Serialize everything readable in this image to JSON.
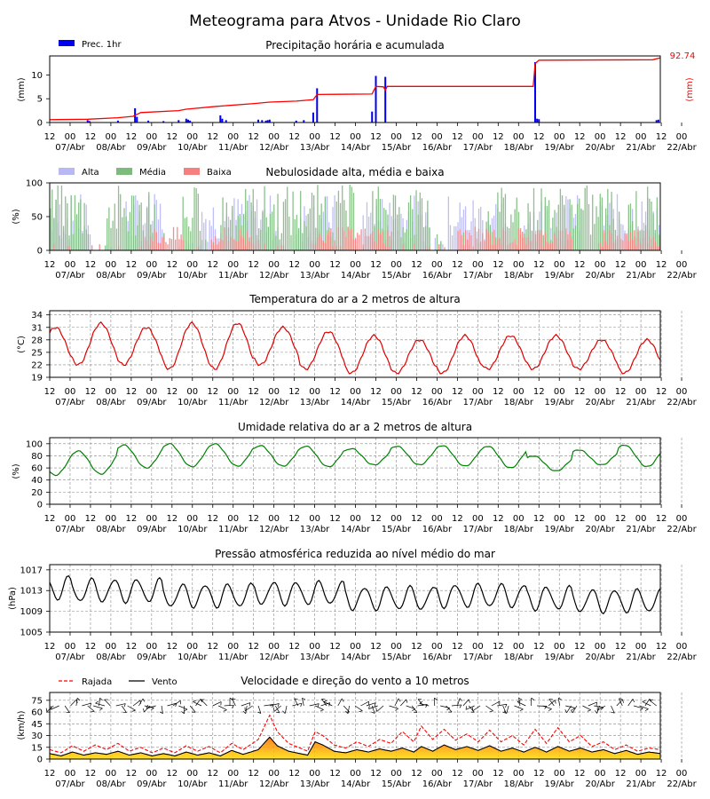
{
  "title": "Meteograma para Atvos - Unidade Rio Claro",
  "colors": {
    "precip_bar": "#0000ee",
    "precip_line": "#ff0000",
    "cloud_alta": "#b8b8f4",
    "cloud_media": "#7dbb7d",
    "cloud_baixa": "#f58080",
    "temperature": "#e00000",
    "humidity": "#008000",
    "pressure": "#000000",
    "gust": "#ff0000",
    "wind": "#000000",
    "wind_fill_low": "#ffdd00",
    "wind_fill_high": "#ff6a00"
  },
  "chart_data": [
    {
      "type": "bar",
      "title": "Precipitação horária e acumulada",
      "ylabel": "(mm)",
      "ylabel_right": "(mm)",
      "ylim": [
        0,
        14
      ],
      "yticks": [
        0,
        5,
        10
      ],
      "legend": {
        "position": "top-left",
        "entries": [
          "Prec. 1hr"
        ]
      },
      "accumulated_total_label": "92.74",
      "hourly_mm": [
        [
          20,
          0.5
        ],
        [
          21,
          0.3
        ],
        [
          36,
          0.4
        ],
        [
          45,
          3.0
        ],
        [
          46,
          1.2
        ],
        [
          52,
          0.4
        ],
        [
          60,
          0.3
        ],
        [
          68,
          0.5
        ],
        [
          72,
          0.8
        ],
        [
          73,
          0.6
        ],
        [
          74,
          0.4
        ],
        [
          90,
          1.5
        ],
        [
          91,
          0.8
        ],
        [
          93,
          0.5
        ],
        [
          110,
          0.6
        ],
        [
          112,
          0.5
        ],
        [
          114,
          0.4
        ],
        [
          115,
          0.5
        ],
        [
          116,
          0.6
        ],
        [
          130,
          0.4
        ],
        [
          134,
          0.5
        ],
        [
          139,
          2.1
        ],
        [
          141,
          7.2
        ],
        [
          170,
          2.3
        ],
        [
          172,
          9.8
        ],
        [
          177,
          9.6
        ],
        [
          256,
          12.7
        ],
        [
          257,
          0.8
        ],
        [
          258,
          0.7
        ],
        [
          320,
          0.5
        ],
        [
          321,
          0.6
        ]
      ],
      "accumulated_mm": [
        [
          0,
          0.6
        ],
        [
          20,
          0.7
        ],
        [
          36,
          1.0
        ],
        [
          44,
          1.3
        ],
        [
          48,
          2.1
        ],
        [
          68,
          2.5
        ],
        [
          72,
          2.8
        ],
        [
          88,
          3.4
        ],
        [
          108,
          4.0
        ],
        [
          116,
          4.3
        ],
        [
          130,
          4.5
        ],
        [
          139,
          4.8
        ],
        [
          141,
          5.9
        ],
        [
          170,
          6.0
        ],
        [
          172,
          7.6
        ],
        [
          176,
          7.5
        ],
        [
          177,
          6.8
        ],
        [
          178,
          7.6
        ],
        [
          255,
          7.6
        ],
        [
          256,
          12.4
        ],
        [
          258,
          13.1
        ],
        [
          318,
          13.2
        ],
        [
          322,
          13.6
        ]
      ],
      "x_tick_hours": [
        "12",
        "00",
        "12",
        "00",
        "12",
        "00",
        "12",
        "00",
        "12",
        "00",
        "12",
        "00",
        "12",
        "00",
        "12",
        "00",
        "12",
        "00",
        "12",
        "00",
        "12",
        "00",
        "12",
        "00",
        "12",
        "00",
        "12",
        "00",
        "12",
        "00",
        "12",
        "00"
      ],
      "x_tick_dates": [
        "07/Abr",
        "08/Abr",
        "09/Abr",
        "10/Abr",
        "11/Abr",
        "12/Abr",
        "13/Abr",
        "14/Abr",
        "15/Abr",
        "16/Abr",
        "17/Abr",
        "18/Abr",
        "19/Abr",
        "20/Abr",
        "21/Abr",
        "22/Abr"
      ],
      "grid": false
    },
    {
      "type": "bar",
      "title": "Nebulosidade alta, média e baixa",
      "ylabel": "(%)",
      "ylim": [
        0,
        100
      ],
      "yticks": [
        0,
        50,
        100
      ],
      "legend": {
        "position": "top-left",
        "entries": [
          "Alta",
          "Média",
          "Baixa"
        ]
      },
      "series": [
        {
          "name": "Alta",
          "level": 60,
          "active_windows": [
            [
              0,
              20
            ],
            [
              40,
              60
            ],
            [
              80,
              120
            ],
            [
              130,
              150
            ],
            [
              165,
              200
            ],
            [
              210,
              240
            ],
            [
              250,
              280
            ],
            [
              290,
              322
            ]
          ]
        },
        {
          "name": "Média",
          "level": 70,
          "active_windows": [
            [
              0,
              20
            ],
            [
              30,
              55
            ],
            [
              70,
              80
            ],
            [
              90,
              160
            ],
            [
              170,
              200
            ],
            [
              230,
              300
            ],
            [
              305,
              322
            ]
          ]
        },
        {
          "name": "Baixa",
          "level": 25,
          "active_windows": [
            [
              50,
              70
            ],
            [
              85,
              110
            ],
            [
              140,
              180
            ],
            [
              215,
              275
            ],
            [
              290,
              320
            ]
          ]
        }
      ],
      "grid": false
    },
    {
      "type": "line",
      "title": "Temperatura do ar a 2 metros de altura",
      "ylabel": "(°C)",
      "ylim": [
        19,
        35
      ],
      "yticks": [
        19,
        22,
        25,
        28,
        31,
        34
      ],
      "daily_max": [
        31,
        32,
        31,
        32,
        32,
        31,
        30,
        29,
        28,
        29,
        29,
        29,
        28,
        28,
        29,
        30,
        29
      ],
      "daily_min": [
        22,
        22,
        22,
        21,
        21,
        22,
        21,
        20,
        20,
        20,
        21,
        21,
        21,
        20,
        20,
        20,
        20
      ],
      "max_hour": 15,
      "grid": true
    },
    {
      "type": "line",
      "title": "Umidade relativa do ar a 2 metros de altura",
      "ylabel": "(%)",
      "ylim": [
        0,
        110
      ],
      "yticks": [
        0,
        20,
        40,
        60,
        80,
        100
      ],
      "daily_max": [
        87,
        88,
        98,
        100,
        100,
        97,
        96,
        92,
        96,
        97,
        96,
        80,
        90,
        98,
        100,
        100,
        97
      ],
      "daily_min": [
        48,
        50,
        60,
        62,
        63,
        63,
        62,
        65,
        65,
        63,
        60,
        55,
        65,
        62,
        60,
        58,
        60
      ],
      "min_hour": 15,
      "grid": true
    },
    {
      "type": "line",
      "title": "Pressão atmosférica reduzida ao nível médio do mar",
      "ylabel": "(hPa)",
      "ylim": [
        1005,
        1018
      ],
      "yticks": [
        1005,
        1009,
        1013,
        1017
      ],
      "daily_mean": [
        1013.5,
        1013,
        1013,
        1012,
        1012,
        1012.5,
        1012.5,
        1011.5,
        1011.5,
        1012,
        1012,
        1011.5,
        1011,
        1011,
        1010.5,
        1010,
        1010
      ],
      "semidiurnal_amplitude": 2.2,
      "grid": true
    },
    {
      "type": "area",
      "title": "Velocidade e direção do vento a 10 metros",
      "ylabel": "(km/h)",
      "ylim": [
        0,
        85
      ],
      "yticks": [
        0,
        15,
        30,
        45,
        60,
        75
      ],
      "legend": {
        "position": "top-left",
        "entries": [
          "Rajada",
          "Vento"
        ]
      },
      "wind_kmh": [
        [
          0,
          7
        ],
        [
          6,
          4
        ],
        [
          12,
          9
        ],
        [
          18,
          5
        ],
        [
          24,
          8
        ],
        [
          30,
          6
        ],
        [
          36,
          10
        ],
        [
          42,
          5
        ],
        [
          48,
          8
        ],
        [
          54,
          4
        ],
        [
          60,
          7
        ],
        [
          66,
          4
        ],
        [
          72,
          9
        ],
        [
          78,
          5
        ],
        [
          84,
          8
        ],
        [
          90,
          4
        ],
        [
          96,
          11
        ],
        [
          102,
          6
        ],
        [
          110,
          12
        ],
        [
          116,
          28
        ],
        [
          120,
          17
        ],
        [
          126,
          10
        ],
        [
          132,
          7
        ],
        [
          136,
          5
        ],
        [
          140,
          22
        ],
        [
          144,
          18
        ],
        [
          150,
          10
        ],
        [
          156,
          8
        ],
        [
          162,
          12
        ],
        [
          168,
          9
        ],
        [
          174,
          13
        ],
        [
          180,
          10
        ],
        [
          186,
          14
        ],
        [
          192,
          9
        ],
        [
          196,
          16
        ],
        [
          202,
          10
        ],
        [
          208,
          18
        ],
        [
          214,
          12
        ],
        [
          220,
          16
        ],
        [
          226,
          11
        ],
        [
          232,
          17
        ],
        [
          238,
          10
        ],
        [
          244,
          14
        ],
        [
          250,
          9
        ],
        [
          256,
          15
        ],
        [
          262,
          9
        ],
        [
          268,
          16
        ],
        [
          274,
          10
        ],
        [
          280,
          14
        ],
        [
          286,
          9
        ],
        [
          292,
          12
        ],
        [
          298,
          7
        ],
        [
          304,
          11
        ],
        [
          310,
          6
        ],
        [
          316,
          9
        ],
        [
          322,
          7
        ]
      ],
      "gust_kmh": [
        [
          0,
          12
        ],
        [
          6,
          8
        ],
        [
          12,
          17
        ],
        [
          18,
          10
        ],
        [
          24,
          18
        ],
        [
          30,
          12
        ],
        [
          36,
          20
        ],
        [
          42,
          10
        ],
        [
          48,
          15
        ],
        [
          54,
          8
        ],
        [
          60,
          14
        ],
        [
          66,
          8
        ],
        [
          72,
          17
        ],
        [
          78,
          10
        ],
        [
          84,
          16
        ],
        [
          90,
          8
        ],
        [
          96,
          20
        ],
        [
          102,
          12
        ],
        [
          110,
          25
        ],
        [
          116,
          56
        ],
        [
          120,
          35
        ],
        [
          126,
          20
        ],
        [
          132,
          14
        ],
        [
          136,
          10
        ],
        [
          140,
          35
        ],
        [
          144,
          30
        ],
        [
          150,
          18
        ],
        [
          156,
          14
        ],
        [
          162,
          22
        ],
        [
          168,
          16
        ],
        [
          174,
          25
        ],
        [
          180,
          20
        ],
        [
          186,
          35
        ],
        [
          192,
          22
        ],
        [
          196,
          42
        ],
        [
          202,
          25
        ],
        [
          208,
          38
        ],
        [
          214,
          24
        ],
        [
          220,
          32
        ],
        [
          226,
          22
        ],
        [
          232,
          37
        ],
        [
          238,
          22
        ],
        [
          244,
          30
        ],
        [
          250,
          18
        ],
        [
          256,
          38
        ],
        [
          262,
          20
        ],
        [
          268,
          40
        ],
        [
          274,
          22
        ],
        [
          280,
          30
        ],
        [
          286,
          16
        ],
        [
          292,
          22
        ],
        [
          298,
          12
        ],
        [
          304,
          18
        ],
        [
          310,
          10
        ],
        [
          316,
          14
        ],
        [
          322,
          12
        ]
      ],
      "barb_level": 68,
      "grid": true
    }
  ]
}
